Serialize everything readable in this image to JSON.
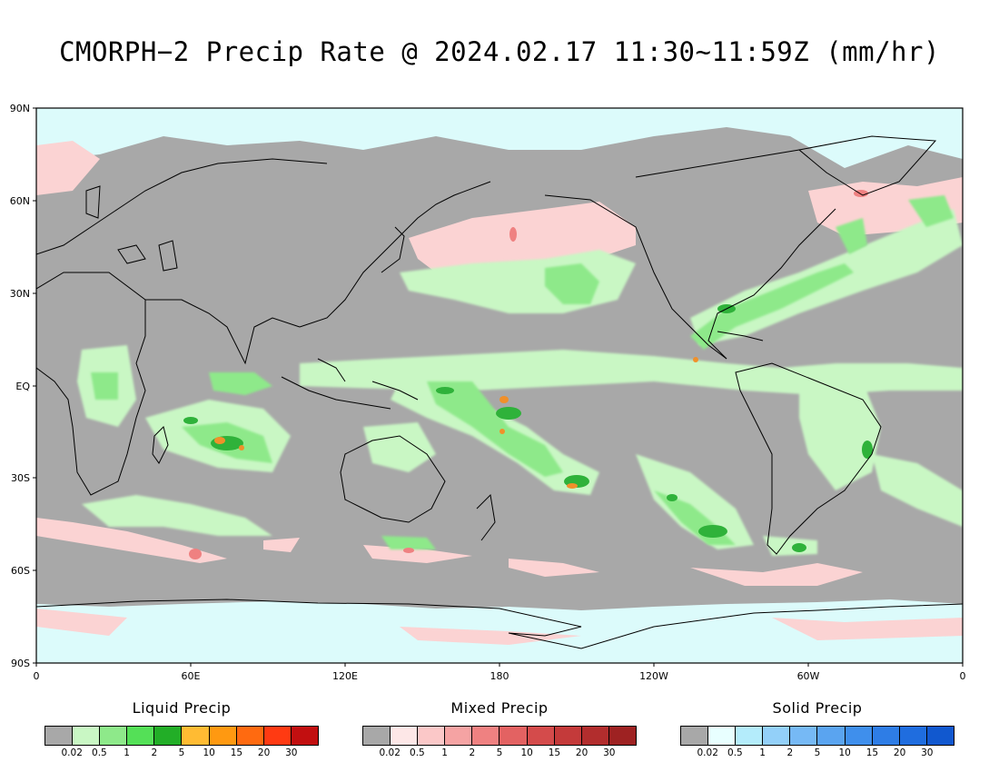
{
  "title": "CMORPH−2 Precip Rate @ 2024.02.17 11:30~11:59Z (mm/hr)",
  "axes": {
    "lat_labels": [
      "90N",
      "60N",
      "30N",
      "EQ",
      "30S",
      "60S",
      "90S"
    ],
    "lon_labels": [
      "0",
      "60E",
      "120E",
      "180",
      "120W",
      "60W",
      "0"
    ]
  },
  "map_colors": {
    "ocean_land": "#a8a8a8",
    "coast": "#000000",
    "liquid_light": "#c9f7c4",
    "liquid_mid": "#8ee98a",
    "liquid_heavy": "#2fb23a",
    "liquid_peak": "#f0902a",
    "mixed_light": "#fbd3d3",
    "solid_light": "#dcfbfb"
  },
  "legends": [
    {
      "title": "Liquid Precip",
      "colors": [
        "#a8a8a8",
        "#c9f7c4",
        "#8ee98a",
        "#54e057",
        "#22ae27",
        "#ffbb33",
        "#ff9911",
        "#ff6a10",
        "#ff3a12",
        "#c20f10"
      ],
      "ticks": [
        "0.02",
        "0.5",
        "1",
        "2",
        "5",
        "10",
        "15",
        "20",
        "30"
      ]
    },
    {
      "title": "Mixed Precip",
      "colors": [
        "#a8a8a8",
        "#fde7e7",
        "#fbc8c8",
        "#f5a3a3",
        "#ef8181",
        "#e36262",
        "#d44b4b",
        "#c43a3a",
        "#b22d2d",
        "#9e2222"
      ],
      "ticks": [
        "0.02",
        "0.5",
        "1",
        "2",
        "5",
        "10",
        "15",
        "20",
        "30"
      ]
    },
    {
      "title": "Solid Precip",
      "colors": [
        "#a8a8a8",
        "#e8ffff",
        "#b4ecfb",
        "#93d0f9",
        "#76b9f5",
        "#5aa4f0",
        "#3f8fec",
        "#2e7de6",
        "#1f6ddf",
        "#1158cf"
      ],
      "ticks": [
        "0.02",
        "0.5",
        "1",
        "2",
        "5",
        "10",
        "15",
        "20",
        "30"
      ]
    }
  ]
}
